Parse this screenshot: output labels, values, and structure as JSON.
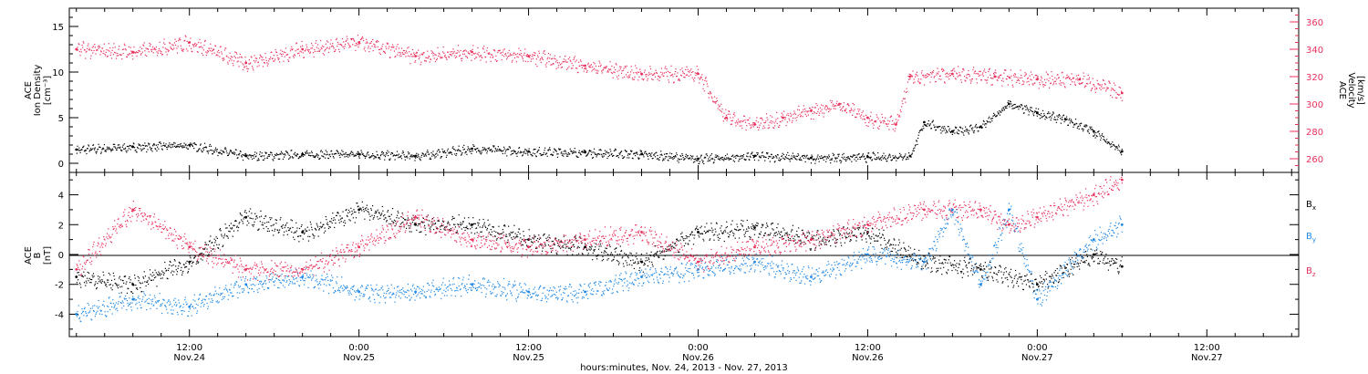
{
  "chart_data": [
    {
      "type": "scatter",
      "panel": "density-velocity",
      "ylabel_left": [
        "ACE",
        "Ion Density",
        "[cm⁻³]"
      ],
      "ylabel_right": [
        "ACE",
        "Velocity",
        "[km/s]"
      ],
      "ylim_left": [
        -1,
        17
      ],
      "ylim_right": [
        250,
        370
      ],
      "yticks_left": [
        "0",
        "5",
        "10",
        "15"
      ],
      "yticks_right": [
        "260",
        "280",
        "300",
        "320",
        "340",
        "360"
      ],
      "series": [
        {
          "color": "#000000",
          "axis": "left",
          "x": [
            "Nov 24 04:00",
            "Nov 24 08:00",
            "Nov 24 12:00",
            "Nov 24 16:00",
            "Nov 24 20:00",
            "Nov 25 00:00",
            "Nov 25 04:00",
            "Nov 25 08:00",
            "Nov 25 12:00",
            "Nov 25 16:00",
            "Nov 25 20:00",
            "Nov 26 00:00",
            "Nov 26 04:00",
            "Nov 26 08:00",
            "Nov 26 12:00",
            "Nov 26 15:00",
            "Nov 26 16:00",
            "Nov 26 18:00",
            "Nov 26 20:00",
            "Nov 26 22:00",
            "Nov 27 00:00",
            "Nov 27 02:00",
            "Nov 27 04:00",
            "Nov 27 06:00"
          ],
          "values": [
            1.5,
            1.8,
            2.0,
            0.8,
            1.0,
            1.0,
            0.8,
            1.6,
            1.3,
            1.2,
            1.0,
            0.5,
            0.8,
            0.6,
            0.7,
            0.8,
            4.5,
            3.5,
            4.0,
            6.5,
            5.5,
            4.8,
            3.5,
            1.3
          ]
        },
        {
          "color": "#e8305c",
          "axis": "right",
          "x": [
            "Nov 24 04:00",
            "Nov 24 08:00",
            "Nov 24 12:00",
            "Nov 24 16:00",
            "Nov 24 20:00",
            "Nov 25 00:00",
            "Nov 25 04:00",
            "Nov 25 08:00",
            "Nov 25 12:00",
            "Nov 25 16:00",
            "Nov 25 20:00",
            "Nov 26 00:00",
            "Nov 26 02:00",
            "Nov 26 04:00",
            "Nov 26 06:00",
            "Nov 26 08:00",
            "Nov 26 10:00",
            "Nov 26 12:00",
            "Nov 26 14:00",
            "Nov 26 15:00",
            "Nov 26 18:00",
            "Nov 26 21:00",
            "Nov 27 00:00",
            "Nov 27 03:00",
            "Nov 27 06:00"
          ],
          "values": [
            340,
            338,
            345,
            330,
            340,
            345,
            335,
            338,
            335,
            328,
            322,
            322,
            290,
            285,
            290,
            295,
            300,
            290,
            285,
            320,
            322,
            320,
            318,
            318,
            308
          ]
        }
      ]
    },
    {
      "type": "scatter",
      "panel": "magnetic-field",
      "ylabel": [
        "ACE",
        "B",
        "[nT]"
      ],
      "ylim": [
        -5.5,
        5.5
      ],
      "yticks": [
        "-4",
        "-2",
        "0",
        "2",
        "4"
      ],
      "series": [
        {
          "name": "Bx",
          "color": "#000000",
          "x": [
            "Nov 24 04:00",
            "Nov 24 08:00",
            "Nov 24 12:00",
            "Nov 24 16:00",
            "Nov 24 20:00",
            "Nov 25 00:00",
            "Nov 25 04:00",
            "Nov 25 08:00",
            "Nov 25 12:00",
            "Nov 25 16:00",
            "Nov 25 20:00",
            "Nov 26 00:00",
            "Nov 26 04:00",
            "Nov 26 08:00",
            "Nov 26 12:00",
            "Nov 26 16:00",
            "Nov 26 20:00",
            "Nov 27 00:00",
            "Nov 27 04:00",
            "Nov 27 06:00"
          ],
          "values": [
            -1.5,
            -2.0,
            -0.5,
            2.5,
            1.5,
            3.0,
            2.0,
            2.0,
            1.0,
            0.5,
            -0.5,
            1.5,
            1.8,
            1.0,
            1.5,
            -0.5,
            -1.0,
            -2.0,
            0.0,
            -0.8
          ]
        },
        {
          "name": "By",
          "color": "#1e88e5",
          "x": [
            "Nov 24 04:00",
            "Nov 24 08:00",
            "Nov 24 12:00",
            "Nov 24 16:00",
            "Nov 24 20:00",
            "Nov 25 00:00",
            "Nov 25 04:00",
            "Nov 25 08:00",
            "Nov 25 12:00",
            "Nov 25 16:00",
            "Nov 25 20:00",
            "Nov 26 00:00",
            "Nov 26 04:00",
            "Nov 26 08:00",
            "Nov 26 12:00",
            "Nov 26 16:00",
            "Nov 26 18:00",
            "Nov 26 20:00",
            "Nov 26 22:00",
            "Nov 27 00:00",
            "Nov 27 04:00",
            "Nov 27 06:00"
          ],
          "values": [
            -4.0,
            -3.0,
            -3.5,
            -2.0,
            -1.5,
            -2.5,
            -2.5,
            -2.0,
            -2.5,
            -2.5,
            -1.5,
            -1.0,
            -0.5,
            -1.5,
            0.0,
            -0.5,
            3.0,
            -2.0,
            3.0,
            -3.0,
            1.0,
            2.0
          ]
        },
        {
          "name": "Bz",
          "color": "#e8305c",
          "x": [
            "Nov 24 04:00",
            "Nov 24 08:00",
            "Nov 24 12:00",
            "Nov 24 16:00",
            "Nov 24 20:00",
            "Nov 25 00:00",
            "Nov 25 04:00",
            "Nov 25 08:00",
            "Nov 25 12:00",
            "Nov 25 16:00",
            "Nov 25 20:00",
            "Nov 26 00:00",
            "Nov 26 04:00",
            "Nov 26 08:00",
            "Nov 26 12:00",
            "Nov 26 16:00",
            "Nov 26 20:00",
            "Nov 26 22:00",
            "Nov 27 00:00",
            "Nov 27 04:00",
            "Nov 27 06:00"
          ],
          "values": [
            -1.0,
            3.0,
            0.5,
            -1.0,
            -1.0,
            0.5,
            2.5,
            1.0,
            0.5,
            1.0,
            1.5,
            -0.5,
            0.5,
            1.0,
            2.0,
            3.0,
            3.0,
            2.0,
            2.5,
            4.0,
            5.0
          ]
        }
      ]
    }
  ],
  "x_axis": {
    "ticks": [
      {
        "time": "12:00",
        "date": "Nov.24"
      },
      {
        "time": "0:00",
        "date": "Nov.25"
      },
      {
        "time": "12:00",
        "date": "Nov.25"
      },
      {
        "time": "0:00",
        "date": "Nov.26"
      },
      {
        "time": "12:00",
        "date": "Nov.26"
      },
      {
        "time": "0:00",
        "date": "Nov.27"
      },
      {
        "time": "12:00",
        "date": "Nov.27"
      }
    ],
    "label": "hours:minutes, Nov. 24, 2013 - Nov. 27, 2013"
  },
  "legend": {
    "bx": {
      "main": "B",
      "sub": "x"
    },
    "by": {
      "main": "B",
      "sub": "y"
    },
    "bz": {
      "main": "B",
      "sub": "z"
    }
  }
}
